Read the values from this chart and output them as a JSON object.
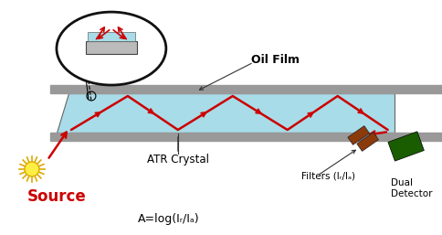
{
  "bg_color": "#ffffff",
  "crystal_color": "#a8dce8",
  "crystal_border": "#666666",
  "plate_color": "#999999",
  "zigzag_color": "#cc0000",
  "source_color": "#ffee44",
  "source_ray_color": "#ddaa00",
  "source_label": "Source",
  "source_label_color": "#cc0000",
  "atr_label": "ATR Crystal",
  "oil_label": "Oil Film",
  "filters_label": "Filters (Iᵣ/Iₐ)",
  "formula_label": "A=log(Iᵣ/Iₐ)",
  "detector_label": "Dual\nDetector",
  "detector_color": "#1a5c00",
  "filter_color": "#8b3a0a",
  "ellipse_fill": "#a8dce8",
  "ellipse_border": "#111111",
  "arrow_color": "#333333"
}
